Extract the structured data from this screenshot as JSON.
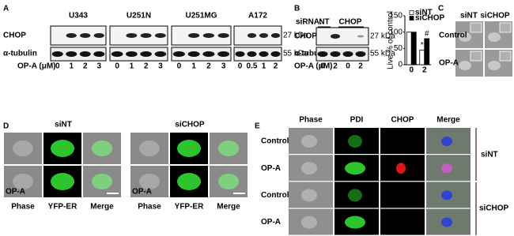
{
  "panels": {
    "A": {
      "label": "A",
      "cell_lines": [
        "U343",
        "U251N",
        "U251MG",
        "A172"
      ],
      "rows": [
        "CHOP",
        "α-tubulin"
      ],
      "markers": [
        "27 kDa",
        "55 kDa"
      ],
      "treatment": "OP-A (μM)",
      "doses": [
        [
          "0",
          "1",
          "2",
          "3"
        ],
        [
          "0",
          "1",
          "2",
          "3"
        ],
        [
          "0",
          "1",
          "2",
          "3"
        ],
        [
          "0",
          "0.5",
          "1",
          "2"
        ]
      ]
    },
    "B": {
      "label": "B",
      "sirna_label": "siRNA:",
      "groups": [
        "NT",
        "CHOP"
      ],
      "rows": [
        "CHOP",
        "α-tubulin"
      ],
      "markers": [
        "27 kDa",
        "55 kDa"
      ],
      "treatment": "OP-A (μM)",
      "doses": [
        "0",
        "2",
        "0",
        "2"
      ],
      "chart": {
        "type": "bar",
        "y_label": "Live % of control",
        "categories": [
          "0",
          "2"
        ],
        "series": [
          {
            "name": "siNT",
            "color": "#ffffff",
            "values": [
              100,
              45
            ]
          },
          {
            "name": "siCHOP",
            "color": "#000000",
            "values": [
              100,
              80
            ]
          }
        ],
        "ylim": [
          0,
          150
        ],
        "yticks": [
          0,
          50,
          100,
          150
        ],
        "annotations": [
          "*",
          "#"
        ]
      }
    },
    "C": {
      "label": "C",
      "columns": [
        "siNT",
        "siCHOP"
      ],
      "rows": [
        "Control",
        "OP-A"
      ]
    },
    "D": {
      "label": "D",
      "groups": [
        "siNT",
        "siCHOP"
      ],
      "columns": [
        "Phase",
        "YFP-ER",
        "Merge"
      ],
      "inset_label": "OP-A"
    },
    "E": {
      "label": "E",
      "columns": [
        "Phase",
        "PDI",
        "CHOP",
        "Merge"
      ],
      "rows": [
        "Control",
        "OP-A",
        "Control",
        "OP-A"
      ],
      "groups": [
        "siNT",
        "siCHOP"
      ]
    }
  }
}
